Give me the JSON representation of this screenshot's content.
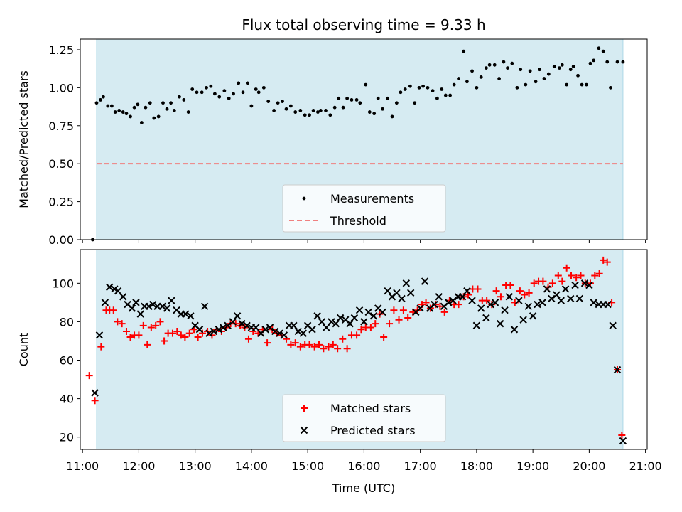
{
  "chart_data": [
    {
      "type": "scatter",
      "title": "Flux total observing time = 9.33 h",
      "xlabel": "",
      "ylabel": "Matched/Predicted stars",
      "xlim": [
        10.96,
        21.03
      ],
      "ylim": [
        0.0,
        1.32
      ],
      "yticks": [
        0.0,
        0.25,
        0.5,
        0.75,
        1.0,
        1.25
      ],
      "ytick_labels": [
        "0.00",
        "0.25",
        "0.50",
        "0.75",
        "1.00",
        "1.25"
      ],
      "observing_span": [
        11.25,
        20.6
      ],
      "threshold": {
        "name": "Threshold",
        "value": 0.5,
        "color": "#f08080"
      },
      "legend": {
        "position": "bottom-center",
        "entries": [
          "Measurements",
          "Threshold"
        ]
      },
      "series": [
        {
          "name": "Measurements",
          "color": "#000000",
          "x": [
            11.18,
            11.25,
            11.32,
            11.37,
            11.45,
            11.52,
            11.58,
            11.65,
            11.72,
            11.78,
            11.85,
            11.92,
            11.98,
            12.05,
            12.12,
            12.2,
            12.27,
            12.35,
            12.43,
            12.5,
            12.57,
            12.63,
            12.72,
            12.8,
            12.88,
            12.95,
            13.03,
            13.12,
            13.2,
            13.28,
            13.35,
            13.43,
            13.52,
            13.6,
            13.68,
            13.77,
            13.85,
            13.93,
            14.0,
            14.08,
            14.13,
            14.22,
            14.3,
            14.4,
            14.47,
            14.55,
            14.62,
            14.7,
            14.78,
            14.87,
            14.95,
            15.03,
            15.1,
            15.18,
            15.23,
            15.32,
            15.4,
            15.48,
            15.55,
            15.63,
            15.7,
            15.78,
            15.87,
            15.93,
            16.03,
            16.1,
            16.18,
            16.25,
            16.33,
            16.42,
            16.5,
            16.58,
            16.65,
            16.73,
            16.82,
            16.9,
            16.98,
            17.05,
            17.13,
            17.22,
            17.3,
            17.38,
            17.45,
            17.53,
            17.6,
            17.68,
            17.77,
            17.83,
            17.92,
            18.0,
            18.08,
            18.17,
            18.23,
            18.32,
            18.4,
            18.48,
            18.55,
            18.63,
            18.72,
            18.78,
            18.87,
            18.95,
            19.05,
            19.12,
            19.2,
            19.28,
            19.38,
            19.47,
            19.52,
            19.6,
            19.67,
            19.72,
            19.8,
            19.87,
            19.95,
            20.02,
            20.08,
            20.17,
            20.25,
            20.32,
            20.38,
            20.5,
            20.6
          ],
          "y": [
            0.0,
            0.9,
            0.92,
            0.94,
            0.88,
            0.88,
            0.84,
            0.85,
            0.84,
            0.83,
            0.81,
            0.87,
            0.89,
            0.77,
            0.87,
            0.9,
            0.8,
            0.81,
            0.9,
            0.86,
            0.9,
            0.85,
            0.94,
            0.92,
            0.84,
            0.99,
            0.97,
            0.97,
            1.0,
            1.01,
            0.96,
            0.94,
            0.98,
            0.93,
            0.96,
            1.03,
            0.97,
            1.03,
            0.88,
            0.99,
            0.97,
            1.0,
            0.91,
            0.85,
            0.9,
            0.91,
            0.86,
            0.88,
            0.84,
            0.85,
            0.82,
            0.82,
            0.85,
            0.84,
            0.85,
            0.85,
            0.82,
            0.87,
            0.93,
            0.87,
            0.93,
            0.92,
            0.92,
            0.9,
            1.02,
            0.84,
            0.83,
            0.93,
            0.86,
            0.93,
            0.81,
            0.9,
            0.97,
            0.99,
            1.01,
            0.9,
            1.0,
            1.01,
            1.0,
            0.98,
            0.93,
            0.99,
            0.95,
            0.95,
            1.02,
            1.06,
            1.24,
            1.04,
            1.11,
            1.0,
            1.07,
            1.13,
            1.15,
            1.15,
            1.06,
            1.17,
            1.13,
            1.16,
            1.0,
            1.12,
            1.02,
            1.11,
            1.04,
            1.12,
            1.06,
            1.09,
            1.14,
            1.13,
            1.15,
            1.02,
            1.12,
            1.14,
            1.08,
            1.02,
            1.02,
            1.16,
            1.18,
            1.26,
            1.24,
            1.17,
            1.0,
            1.17,
            1.17
          ]
        }
      ]
    },
    {
      "type": "scatter",
      "title": "",
      "xlabel": "Time (UTC)",
      "ylabel": "Count",
      "xlim": [
        10.96,
        21.03
      ],
      "ylim": [
        13.6,
        117.5
      ],
      "yticks": [
        20,
        40,
        60,
        80,
        100
      ],
      "ytick_labels": [
        "20",
        "40",
        "60",
        "80",
        "100"
      ],
      "xticks": [
        11,
        12,
        13,
        14,
        15,
        16,
        17,
        18,
        19,
        20,
        21
      ],
      "xtick_labels": [
        "11:00",
        "12:00",
        "13:00",
        "14:00",
        "15:00",
        "16:00",
        "17:00",
        "18:00",
        "19:00",
        "20:00",
        "21:00"
      ],
      "observing_span": [
        11.25,
        20.6
      ],
      "legend": {
        "position": "bottom-center",
        "entries": [
          "Matched stars",
          "Predicted stars"
        ]
      },
      "series": [
        {
          "name": "Matched stars",
          "marker": "+",
          "color": "#ff0000",
          "x": [
            11.12,
            11.22,
            11.33,
            11.42,
            11.48,
            11.55,
            11.62,
            11.7,
            11.78,
            11.85,
            11.92,
            12.0,
            12.08,
            12.15,
            12.22,
            12.3,
            12.38,
            12.45,
            12.52,
            12.6,
            12.68,
            12.75,
            12.82,
            12.9,
            12.98,
            13.05,
            13.13,
            13.22,
            13.3,
            13.38,
            13.47,
            13.55,
            13.63,
            13.72,
            13.8,
            13.88,
            13.95,
            14.03,
            14.12,
            14.2,
            14.28,
            14.37,
            14.45,
            14.53,
            14.62,
            14.7,
            14.78,
            14.87,
            14.95,
            15.03,
            15.12,
            15.2,
            15.28,
            15.37,
            15.45,
            15.53,
            15.62,
            15.7,
            15.78,
            15.87,
            15.95,
            16.03,
            16.12,
            16.2,
            16.28,
            16.35,
            16.45,
            16.53,
            16.62,
            16.7,
            16.78,
            16.87,
            16.95,
            17.03,
            17.1,
            17.18,
            17.27,
            17.35,
            17.43,
            17.52,
            17.6,
            17.68,
            17.77,
            17.85,
            17.93,
            18.02,
            18.1,
            18.18,
            18.27,
            18.35,
            18.43,
            18.52,
            18.6,
            18.68,
            18.77,
            18.85,
            18.93,
            19.02,
            19.1,
            19.18,
            19.27,
            19.35,
            19.45,
            19.52,
            19.6,
            19.68,
            19.77,
            19.85,
            19.93,
            20.02,
            20.1,
            20.18,
            20.25,
            20.32,
            20.4,
            20.5,
            20.58
          ],
          "y": [
            52,
            39,
            67,
            86,
            86,
            86,
            80,
            79,
            75,
            72,
            73,
            73,
            78,
            68,
            77,
            78,
            80,
            70,
            74,
            74,
            75,
            73,
            72,
            74,
            76,
            72,
            74,
            75,
            73,
            76,
            75,
            77,
            79,
            79,
            78,
            77,
            71,
            75,
            74,
            76,
            69,
            76,
            74,
            73,
            71,
            68,
            69,
            67,
            68,
            68,
            67,
            68,
            66,
            67,
            68,
            66,
            71,
            66,
            73,
            73,
            76,
            77,
            77,
            79,
            84,
            72,
            79,
            86,
            81,
            86,
            82,
            85,
            86,
            89,
            90,
            87,
            89,
            88,
            85,
            91,
            89,
            89,
            93,
            94,
            97,
            97,
            91,
            91,
            89,
            96,
            93,
            99,
            99,
            90,
            96,
            94,
            95,
            100,
            101,
            101,
            98,
            100,
            104,
            101,
            108,
            104,
            103,
            104,
            100,
            100,
            104,
            105,
            112,
            111,
            90,
            55,
            21
          ]
        },
        {
          "name": "Predicted stars",
          "marker": "x",
          "color": "#000000",
          "x": [
            11.22,
            11.3,
            11.4,
            11.48,
            11.57,
            11.63,
            11.72,
            11.8,
            11.88,
            11.95,
            12.03,
            12.1,
            12.18,
            12.25,
            12.33,
            12.42,
            12.5,
            12.58,
            12.67,
            12.75,
            12.83,
            12.92,
            13.0,
            13.08,
            13.17,
            13.25,
            13.33,
            13.42,
            13.5,
            13.58,
            13.67,
            13.75,
            13.83,
            13.92,
            14.0,
            14.08,
            14.17,
            14.25,
            14.33,
            14.42,
            14.5,
            14.58,
            14.67,
            14.75,
            14.83,
            14.92,
            15.0,
            15.08,
            15.17,
            15.25,
            15.33,
            15.42,
            15.5,
            15.58,
            15.67,
            15.75,
            15.83,
            15.92,
            16.0,
            16.08,
            16.17,
            16.25,
            16.33,
            16.42,
            16.5,
            16.58,
            16.67,
            16.75,
            16.83,
            16.92,
            17.0,
            17.08,
            17.17,
            17.25,
            17.33,
            17.42,
            17.5,
            17.58,
            17.67,
            17.75,
            17.83,
            17.92,
            18.0,
            18.08,
            18.17,
            18.25,
            18.33,
            18.42,
            18.5,
            18.58,
            18.67,
            18.75,
            18.83,
            18.92,
            19.0,
            19.08,
            19.17,
            19.25,
            19.33,
            19.42,
            19.5,
            19.58,
            19.67,
            19.75,
            19.83,
            19.92,
            20.0,
            20.08,
            20.17,
            20.25,
            20.33,
            20.42,
            20.5,
            20.6
          ],
          "y": [
            43,
            73,
            90,
            98,
            97,
            96,
            93,
            89,
            87,
            90,
            84,
            88,
            88,
            89,
            88,
            88,
            87,
            91,
            86,
            84,
            84,
            83,
            78,
            76,
            88,
            74,
            75,
            76,
            77,
            78,
            80,
            83,
            79,
            78,
            77,
            77,
            74,
            76,
            77,
            75,
            74,
            73,
            78,
            78,
            75,
            74,
            78,
            76,
            83,
            80,
            77,
            80,
            79,
            82,
            81,
            79,
            82,
            86,
            80,
            85,
            83,
            87,
            85,
            96,
            93,
            95,
            92,
            100,
            95,
            85,
            87,
            101,
            87,
            89,
            93,
            88,
            90,
            91,
            93,
            93,
            96,
            91,
            78,
            87,
            82,
            89,
            90,
            79,
            86,
            93,
            76,
            91,
            81,
            88,
            83,
            89,
            90,
            97,
            92,
            94,
            91,
            97,
            92,
            99,
            92,
            100,
            99,
            90,
            89,
            89,
            89,
            78,
            55,
            18
          ]
        }
      ]
    }
  ]
}
